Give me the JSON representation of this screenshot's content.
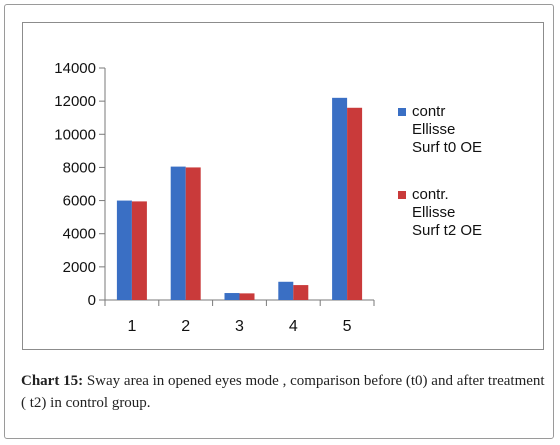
{
  "chart_data": {
    "type": "bar",
    "categories": [
      "1",
      "2",
      "3",
      "4",
      "5"
    ],
    "series": [
      {
        "name": "contr Ellisse Surf t0 OE",
        "legend_lines": [
          "contr",
          "Ellisse",
          "Surf t0 OE"
        ],
        "color": "#3a6fc4",
        "values": [
          6000,
          8050,
          420,
          1100,
          12200
        ]
      },
      {
        "name": "contr. Ellisse Surf t2 OE",
        "legend_lines": [
          "contr.",
          "Ellisse",
          "Surf t2 OE"
        ],
        "color": "#c93a3a",
        "values": [
          5950,
          8000,
          400,
          900,
          11600
        ]
      }
    ],
    "y_ticks": [
      "0",
      "2000",
      "4000",
      "6000",
      "8000",
      "10000",
      "12000",
      "14000"
    ],
    "ylim": [
      0,
      14000
    ],
    "legend_position": "right",
    "grid": false
  },
  "caption": {
    "label": "Chart 15:",
    "text": " Sway area in opened eyes mode , comparison before (t0) and after treatment ( t2) in control group."
  }
}
